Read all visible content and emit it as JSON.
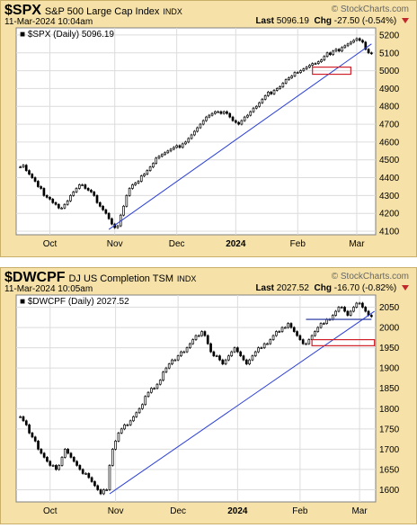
{
  "chart_data": [
    {
      "type": "candlestick",
      "symbol": "$SPX",
      "name": "S&P 500 Large Cap Index",
      "exchange": "INDX",
      "brand": "© StockCharts.com",
      "timestamp": "11-Mar-2024 10:04am",
      "last_label": "Last",
      "last_value": "5096.19",
      "chg_label": "Chg",
      "chg_value": "-27.50 (-0.54%)",
      "legend": "$SPX (Daily) 5096.19",
      "ylim": [
        4080,
        5240
      ],
      "y_ticks": [
        4100,
        4200,
        4300,
        4400,
        4500,
        4600,
        4700,
        4800,
        4900,
        5000,
        5100,
        5200
      ],
      "x_ticks": [
        {
          "label": "Oct",
          "i": 10
        },
        {
          "label": "Nov",
          "i": 32
        },
        {
          "label": "Dec",
          "i": 53
        },
        {
          "label": "2024",
          "i": 73
        },
        {
          "label": "Feb",
          "i": 94
        },
        {
          "label": "Mar",
          "i": 114
        }
      ],
      "closes": [
        4460,
        4470,
        4440,
        4420,
        4400,
        4380,
        4350,
        4340,
        4300,
        4290,
        4280,
        4260,
        4250,
        4230,
        4230,
        4250,
        4270,
        4300,
        4320,
        4340,
        4360,
        4360,
        4340,
        4330,
        4320,
        4300,
        4260,
        4240,
        4220,
        4200,
        4170,
        4140,
        4120,
        4130,
        4190,
        4240,
        4300,
        4340,
        4360,
        4370,
        4380,
        4410,
        4420,
        4440,
        4460,
        4480,
        4510,
        4520,
        4530,
        4540,
        4550,
        4560,
        4570,
        4580,
        4570,
        4590,
        4600,
        4620,
        4640,
        4660,
        4680,
        4700,
        4720,
        4740,
        4750,
        4760,
        4770,
        4770,
        4760,
        4770,
        4760,
        4740,
        4720,
        4710,
        4700,
        4720,
        4740,
        4750,
        4770,
        4790,
        4800,
        4820,
        4840,
        4860,
        4880,
        4870,
        4890,
        4900,
        4910,
        4930,
        4950,
        4960,
        4970,
        4990,
        4990,
        5000,
        5010,
        5020,
        5030,
        5040,
        5040,
        5050,
        5060,
        5080,
        5100,
        5090,
        5110,
        5120,
        5110,
        5130,
        5140,
        5150,
        5160,
        5170,
        5180,
        5170,
        5160,
        5120,
        5100,
        5096
      ],
      "trendline": {
        "start": [
          30,
          4110
        ],
        "end": [
          119,
          5150
        ]
      },
      "box": {
        "i0": 99,
        "i1": 112,
        "y0": 4980,
        "y1": 5020
      }
    },
    {
      "type": "candlestick",
      "symbol": "$DWCPF",
      "name": "DJ US Completion TSM",
      "exchange": "INDX",
      "brand": "© StockCharts.com",
      "timestamp": "11-Mar-2024 10:05am",
      "last_label": "Last",
      "last_value": "2027.52",
      "chg_label": "Chg",
      "chg_value": "-16.70 (-0.82%)",
      "legend": "$DWCPF (Daily) 2027.52",
      "ylim": [
        1570,
        2080
      ],
      "y_ticks": [
        1600,
        1650,
        1700,
        1750,
        1800,
        1850,
        1900,
        1950,
        2000,
        2050
      ],
      "x_ticks": [
        {
          "label": "Oct",
          "i": 10
        },
        {
          "label": "Nov",
          "i": 32
        },
        {
          "label": "Dec",
          "i": 53
        },
        {
          "label": "2024",
          "i": 73
        },
        {
          "label": "Feb",
          "i": 94
        },
        {
          "label": "Mar",
          "i": 114
        }
      ],
      "closes": [
        1780,
        1770,
        1760,
        1740,
        1730,
        1720,
        1700,
        1690,
        1680,
        1670,
        1660,
        1660,
        1650,
        1660,
        1680,
        1700,
        1690,
        1680,
        1670,
        1660,
        1650,
        1640,
        1640,
        1630,
        1620,
        1610,
        1600,
        1590,
        1600,
        1600,
        1660,
        1700,
        1720,
        1740,
        1750,
        1760,
        1760,
        1770,
        1780,
        1790,
        1800,
        1810,
        1830,
        1840,
        1850,
        1850,
        1860,
        1870,
        1890,
        1900,
        1910,
        1920,
        1920,
        1930,
        1940,
        1940,
        1950,
        1960,
        1970,
        1980,
        1980,
        1990,
        1980,
        1960,
        1940,
        1930,
        1930,
        1920,
        1910,
        1920,
        1930,
        1940,
        1950,
        1940,
        1930,
        1920,
        1910,
        1920,
        1930,
        1940,
        1950,
        1950,
        1960,
        1960,
        1970,
        1980,
        1990,
        1990,
        2000,
        2000,
        2010,
        2000,
        1990,
        1980,
        1970,
        1960,
        1960,
        1970,
        1980,
        1990,
        2000,
        2010,
        2010,
        2020,
        2020,
        2030,
        2040,
        2050,
        2050,
        2040,
        2030,
        2040,
        2050,
        2060,
        2060,
        2050,
        2040,
        2030,
        2027
      ],
      "trendline": {
        "start": [
          30,
          1590
        ],
        "end": [
          119,
          2040
        ]
      },
      "hline": {
        "i0": 96,
        "i1": 118,
        "y": 2020
      },
      "box": {
        "i0": 98,
        "i1": 119,
        "y0": 1955,
        "y1": 1970
      }
    }
  ]
}
